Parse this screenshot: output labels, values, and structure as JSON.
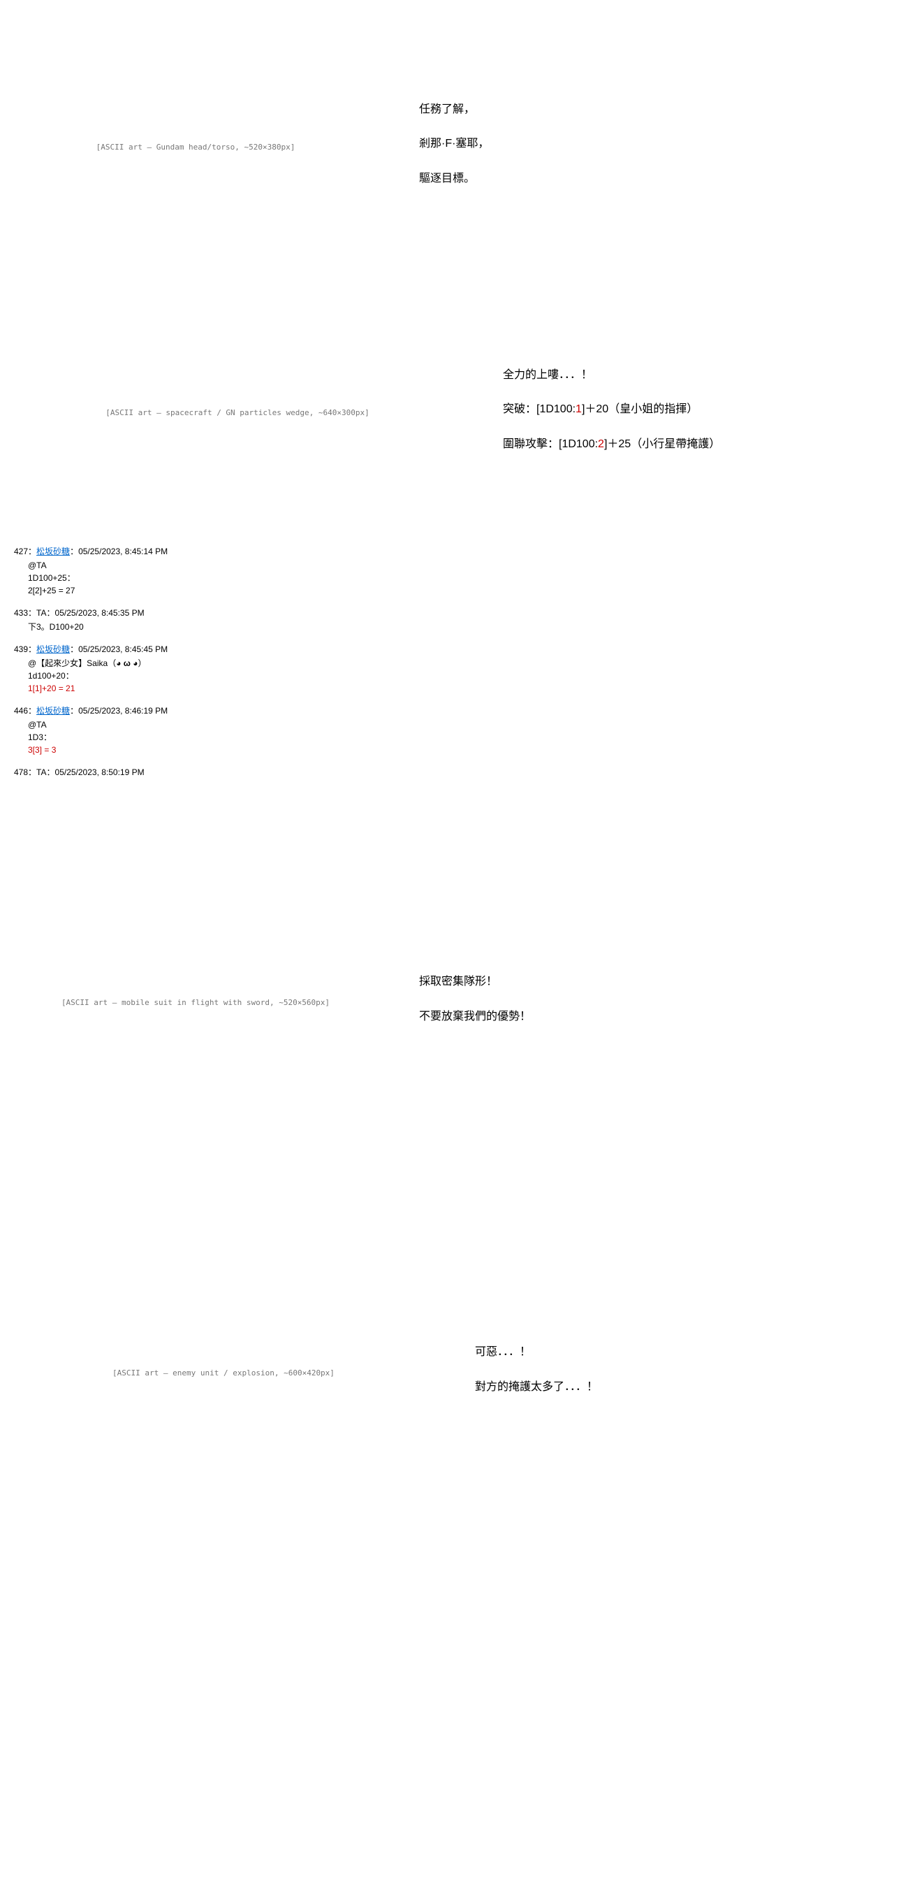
{
  "blocks": [
    {
      "art_hint": "[ASCII art — Gundam head/torso, ~520×380px]",
      "dialogue": [
        "任務了解，",
        "剎那·F·塞耶，",
        "驅逐目標。"
      ]
    },
    {
      "art_hint": "[ASCII art — spacecraft / GN particles wedge, ~640×300px]",
      "dialogue": [
        "全力的上嘍．．．！",
        "突破：[1D100:<span class=\"roll-red\">1</span>]＋20（皇小姐的指揮）",
        "圍聯攻擊：[1D100:<span class=\"roll-red\">2</span>]＋25（小行星帶掩護）"
      ]
    }
  ],
  "posts": [
    {
      "num": "427",
      "name": "松坂砂糖",
      "name_link": true,
      "ts": "05/25/2023, 8:45:14 PM",
      "body": [
        "@TA",
        "1D100+25：",
        "2[2]+25 = 27"
      ]
    },
    {
      "num": "433",
      "name": "TA",
      "name_link": false,
      "ts": "05/25/2023, 8:45:35 PM",
      "body": [
        "下3。D100+20"
      ]
    },
    {
      "num": "439",
      "name": "松坂砂糖",
      "name_link": true,
      "ts": "05/25/2023, 8:45:45 PM",
      "body": [
        "@【起來少女】Saika（<b>◕ ω ◕</b>）",
        "1d100+20：",
        "<span class=\"roll-red\">1[1]+20 = 21</span>"
      ]
    },
    {
      "num": "446",
      "name": "松坂砂糖",
      "name_link": true,
      "ts": "05/25/2023, 8:46:19 PM",
      "body": [
        "@TA",
        "1D3：",
        "<span class=\"roll-red\">3[3] = 3</span>"
      ]
    },
    {
      "num": "478",
      "name": "TA",
      "name_link": false,
      "ts": "05/25/2023, 8:50:19 PM",
      "body": []
    }
  ],
  "blocks2": [
    {
      "art_hint": "[ASCII art — mobile suit in flight with sword, ~520×560px]",
      "dialogue": [
        "採取密集隊形！",
        "不要放棄我們的優勢！"
      ]
    },
    {
      "art_hint": "[ASCII art — enemy unit / explosion, ~600×420px]",
      "dialogue": [
        "可惡．．．！",
        "對方的掩護太多了．．．！"
      ]
    }
  ],
  "style": {
    "bg": "#ffffff",
    "text_color": "#000000",
    "ascii_color": "#555555",
    "link_color": "#0066cc",
    "roll_color": "#cc0000",
    "body_font": "MS PGothic, Meiryo, sans-serif",
    "ascii_font": "MS PGothic, MS Gothic, monospace",
    "dialogue_fontsize": 16,
    "post_fontsize": 12,
    "ascii_fontsize": 12
  }
}
